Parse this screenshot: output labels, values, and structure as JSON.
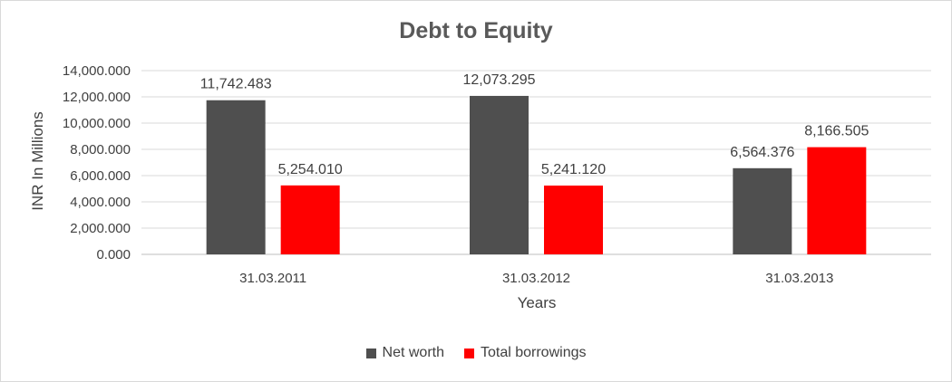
{
  "chart_data": {
    "type": "bar",
    "title": "Debt to Equity",
    "xlabel": "Years",
    "ylabel": "INR In Millions",
    "categories": [
      "31.03.2011",
      "31.03.2012",
      "31.03.2013"
    ],
    "series": [
      {
        "name": "Net worth",
        "color": "#4f4f4f",
        "values": [
          11742.483,
          12073.295,
          6564.376
        ],
        "labels": [
          "11,742.483",
          "12,073.295",
          "6,564.376"
        ]
      },
      {
        "name": "Total borrowings",
        "color": "#ff0000",
        "values": [
          5254.01,
          5241.12,
          8166.505
        ],
        "labels": [
          "5,254.010",
          "5,241.120",
          "8,166.505"
        ]
      }
    ],
    "ylim": [
      0,
      14000
    ],
    "yticks": [
      0,
      2000,
      4000,
      6000,
      8000,
      10000,
      12000,
      14000
    ],
    "ytick_labels": [
      "0.000",
      "2,000.000",
      "4,000.000",
      "6,000.000",
      "8,000.000",
      "10,000.000",
      "12,000.000",
      "14,000.000"
    ],
    "grid": true,
    "legend_position": "bottom"
  }
}
